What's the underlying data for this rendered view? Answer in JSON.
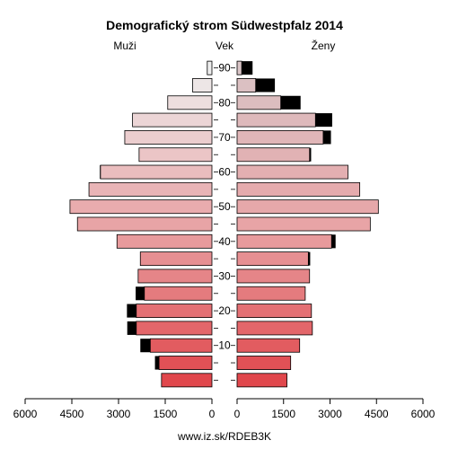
{
  "chart_data": {
    "type": "bar",
    "orientation": "horizontal-pyramid",
    "title": "Demografický strom Südwestpfalz 2014",
    "left_label": "Muži",
    "center_label": "Vek",
    "right_label": "Ženy",
    "footer": "www.iz.sk/RDEB3K",
    "xlim": [
      0,
      6000
    ],
    "x_ticks": [
      0,
      1500,
      3000,
      4500,
      6000
    ],
    "x_tick_labels_left": [
      "6000",
      "4500",
      "3000",
      "1500",
      "0"
    ],
    "x_tick_labels_right": [
      "0",
      "1500",
      "3000",
      "4500",
      "6000"
    ],
    "age_ticks": [
      "10",
      "20",
      "30",
      "40",
      "50",
      "60",
      "70",
      "80",
      "90"
    ],
    "age_groups": [
      "0-4",
      "5-9",
      "10-14",
      "15-19",
      "20-24",
      "25-29",
      "30-34",
      "35-39",
      "40-44",
      "45-49",
      "50-54",
      "55-59",
      "60-64",
      "65-69",
      "70-74",
      "75-79",
      "80-84",
      "85-89",
      "90+"
    ],
    "male": [
      1620,
      1700,
      1980,
      2430,
      2430,
      2170,
      2370,
      2300,
      3050,
      4320,
      4560,
      3950,
      3580,
      2340,
      2800,
      2550,
      1420,
      620,
      150
    ],
    "male_excess": [
      0,
      130,
      320,
      290,
      300,
      280,
      0,
      0,
      0,
      0,
      0,
      0,
      20,
      0,
      0,
      0,
      0,
      0,
      0
    ],
    "female": [
      1610,
      1730,
      2020,
      2430,
      2400,
      2200,
      2340,
      2300,
      3050,
      4300,
      4560,
      3960,
      3580,
      2340,
      2780,
      2530,
      1410,
      600,
      150
    ],
    "female_excess": [
      0,
      0,
      0,
      0,
      0,
      0,
      0,
      60,
      130,
      0,
      0,
      0,
      0,
      50,
      250,
      540,
      640,
      620,
      350
    ],
    "colors": {
      "bottom": "#e0474c",
      "middle": "#e8a4a6",
      "top": "#eeeeee",
      "excess": "#000000",
      "female_top": "#d9c4c6"
    }
  }
}
